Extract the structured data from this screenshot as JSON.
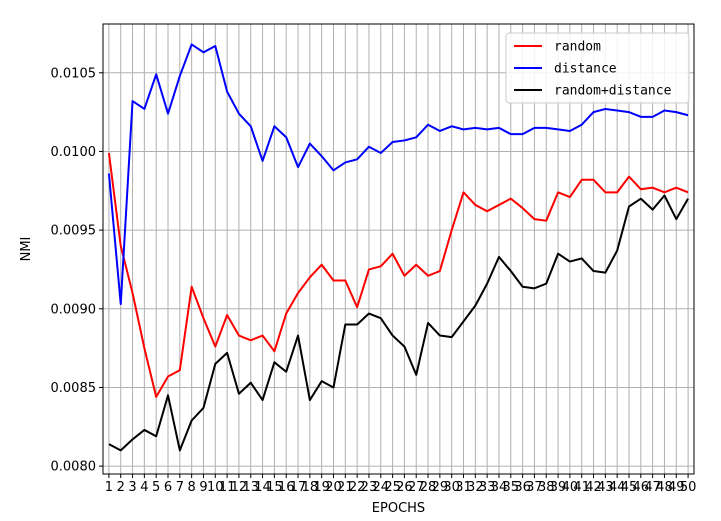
{
  "chart_data": {
    "type": "line",
    "title": "",
    "xlabel": "EPOCHS",
    "ylabel": "NMI",
    "x": [
      1,
      2,
      3,
      4,
      5,
      6,
      7,
      8,
      9,
      10,
      11,
      12,
      13,
      14,
      15,
      16,
      17,
      18,
      19,
      20,
      21,
      22,
      23,
      24,
      25,
      26,
      27,
      28,
      29,
      30,
      31,
      32,
      33,
      34,
      35,
      36,
      37,
      38,
      39,
      40,
      41,
      42,
      43,
      44,
      45,
      46,
      47,
      48,
      49,
      50
    ],
    "xlim": [
      0.5,
      50.5
    ],
    "ylim": [
      0.00795,
      0.01081
    ],
    "yticks": [
      0.008,
      0.0085,
      0.009,
      0.0095,
      0.01,
      0.0105
    ],
    "ytick_labels": [
      "0.0080",
      "0.0085",
      "0.0090",
      "0.0095",
      "0.0100",
      "0.0105"
    ],
    "grid": true,
    "legend_position": "top-right",
    "series": [
      {
        "name": "random",
        "color": "#ff0000",
        "values": [
          0.00999,
          0.0094,
          0.0091,
          0.00875,
          0.00844,
          0.00857,
          0.00861,
          0.00914,
          0.00894,
          0.00876,
          0.00896,
          0.00883,
          0.0088,
          0.00883,
          0.00873,
          0.00897,
          0.0091,
          0.0092,
          0.00928,
          0.00918,
          0.00918,
          0.00901,
          0.00925,
          0.00927,
          0.00935,
          0.00921,
          0.00928,
          0.00921,
          0.00924,
          0.0095,
          0.00974,
          0.00966,
          0.00962,
          0.00966,
          0.0097,
          0.00964,
          0.00957,
          0.00956,
          0.00974,
          0.00971,
          0.00982,
          0.00982,
          0.00974,
          0.00974,
          0.00984,
          0.00976,
          0.00977,
          0.00974,
          0.00977,
          0.00974
        ]
      },
      {
        "name": "distance",
        "color": "#0000ff",
        "values": [
          0.00986,
          0.00903,
          0.01032,
          0.01027,
          0.01049,
          0.01024,
          0.01048,
          0.01068,
          0.01063,
          0.01067,
          0.01038,
          0.01024,
          0.01016,
          0.00994,
          0.01016,
          0.01009,
          0.0099,
          0.01005,
          0.00997,
          0.00988,
          0.00993,
          0.00995,
          0.01003,
          0.00999,
          0.01006,
          0.01007,
          0.01009,
          0.01017,
          0.01013,
          0.01016,
          0.01014,
          0.01015,
          0.01014,
          0.01015,
          0.01011,
          0.01011,
          0.01015,
          0.01015,
          0.01014,
          0.01013,
          0.01017,
          0.01025,
          0.01027,
          0.01026,
          0.01025,
          0.01022,
          0.01022,
          0.01026,
          0.01025,
          0.01023
        ]
      },
      {
        "name": "random+distance",
        "color": "#000000",
        "values": [
          0.00814,
          0.0081,
          0.00817,
          0.00823,
          0.00819,
          0.00845,
          0.0081,
          0.00829,
          0.00837,
          0.00865,
          0.00872,
          0.00846,
          0.00853,
          0.00842,
          0.00866,
          0.0086,
          0.00883,
          0.00842,
          0.00854,
          0.0085,
          0.0089,
          0.0089,
          0.00897,
          0.00894,
          0.00883,
          0.00876,
          0.00858,
          0.00891,
          0.00883,
          0.00882,
          0.00892,
          0.00902,
          0.00916,
          0.00933,
          0.00924,
          0.00914,
          0.00913,
          0.00916,
          0.00935,
          0.0093,
          0.00932,
          0.00924,
          0.00923,
          0.00937,
          0.00965,
          0.0097,
          0.00963,
          0.00972,
          0.00957,
          0.0097
        ]
      }
    ]
  }
}
